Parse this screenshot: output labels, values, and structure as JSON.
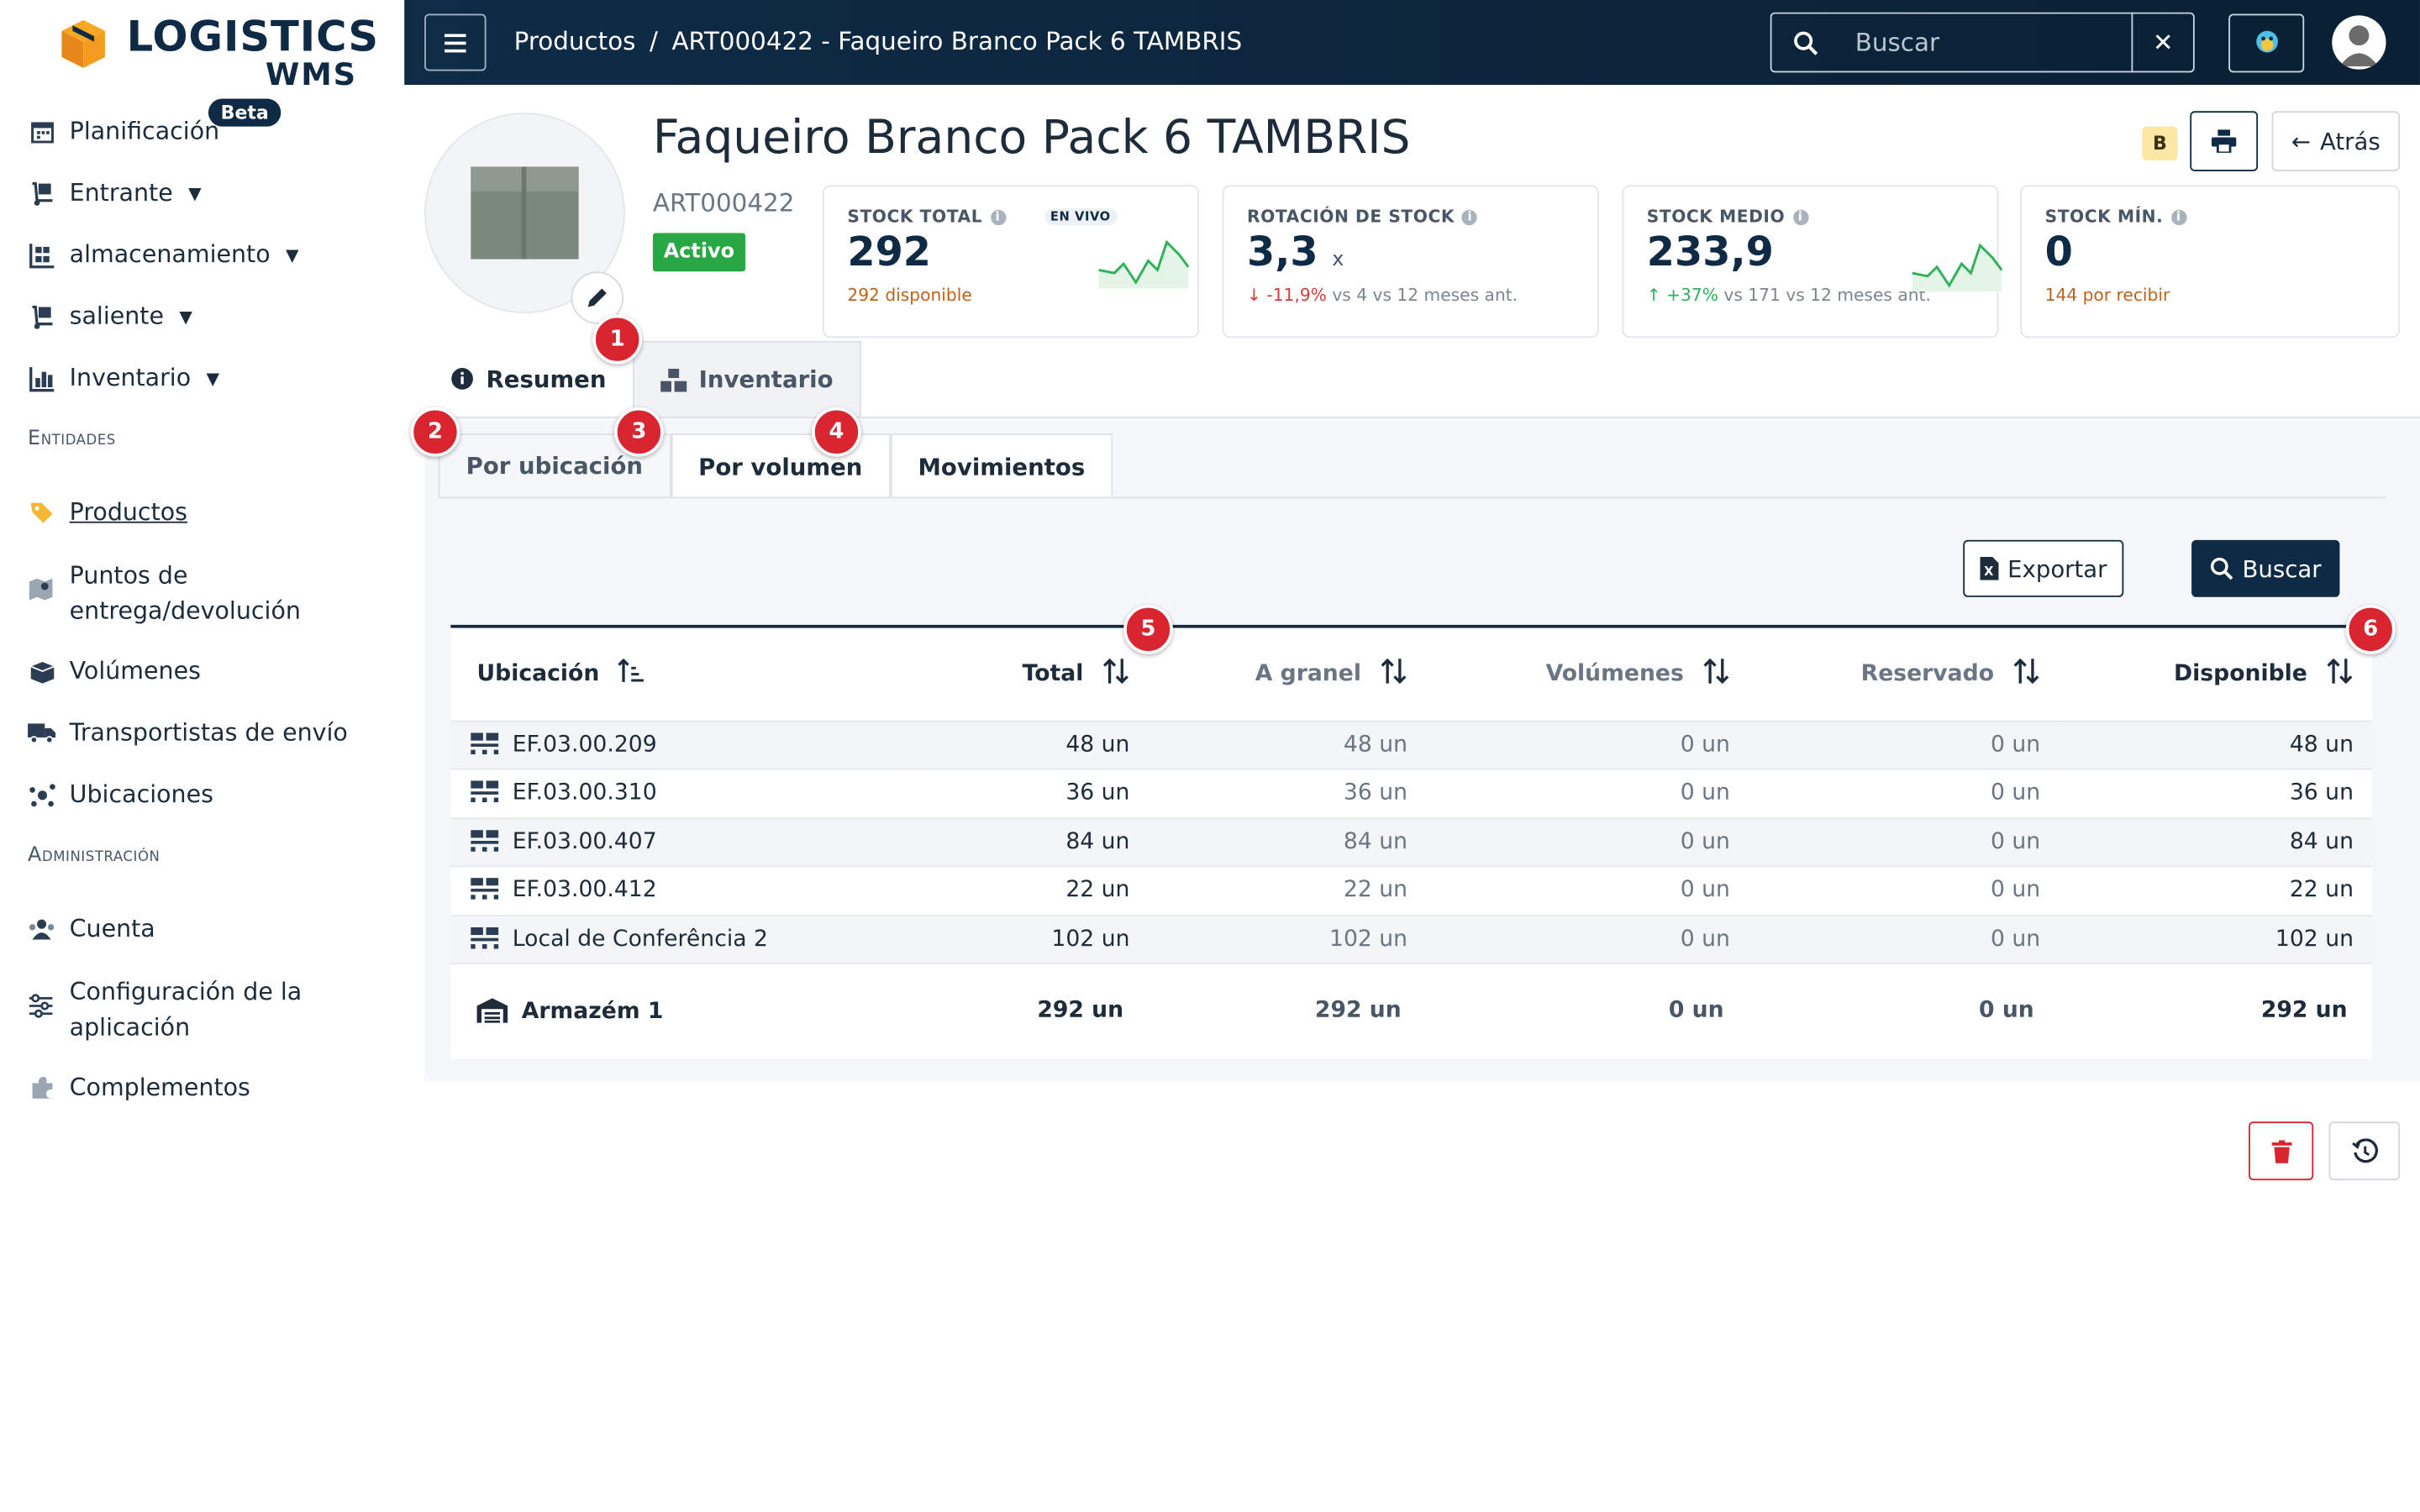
{
  "brand": {
    "name": "LOGISTICS",
    "sub": "WMS"
  },
  "sidebar": {
    "items": [
      {
        "label": "Planificación",
        "badge": "Beta"
      },
      {
        "label": "Entrante"
      },
      {
        "label": "almacenamiento"
      },
      {
        "label": "saliente"
      },
      {
        "label": "Inventario"
      }
    ],
    "section_entities": "Entidades",
    "entities": [
      {
        "label": "Productos"
      },
      {
        "label": "Puntos de",
        "label2": "entrega/devolución"
      },
      {
        "label": "Volúmenes"
      },
      {
        "label": "Transportistas de envío"
      },
      {
        "label": "Ubicaciones"
      }
    ],
    "section_admin": "Administración",
    "admin": [
      {
        "label": "Cuenta"
      },
      {
        "label": "Configuración de la",
        "label2": "aplicación"
      },
      {
        "label": "Complementos"
      }
    ]
  },
  "topbar": {
    "breadcrumb": {
      "parent": "Productos",
      "sep": "/",
      "current": "ART000422 - Faqueiro Branco Pack 6 TAMBRIS"
    },
    "search_placeholder": "Buscar",
    "clear": "✕"
  },
  "product": {
    "title": "Faqueiro Branco Pack 6 TAMBRIS",
    "code": "ART000422",
    "status": "Activo",
    "class": "B"
  },
  "header_buttons": {
    "back": "Atrás"
  },
  "kpis": [
    {
      "label": "STOCK TOTAL",
      "live": "EN VIVO",
      "value": "292",
      "unit": "",
      "sub": "292 disponible",
      "sub_muted": ""
    },
    {
      "label": "ROTACIÓN DE STOCK",
      "value": "3,3",
      "unit": "x",
      "sub": "↓ -11,9%",
      "sub_muted": "vs 4 vs 12 meses ant."
    },
    {
      "label": "STOCK MEDIO",
      "value": "233,9",
      "unit": "",
      "sub": "↑ +37%",
      "sub_muted": "vs 171 vs 12 meses ant."
    },
    {
      "label": "STOCK MÍN.",
      "value": "0",
      "unit": "",
      "sub": "144 por recibir",
      "sub_muted": ""
    }
  ],
  "tabs": {
    "summary": "Resumen",
    "inventory": "Inventario"
  },
  "subtabs": {
    "by_location": "Por ubicación",
    "by_volume": "Por volumen",
    "movements": "Movimientos"
  },
  "actions": {
    "export": "Exportar",
    "search": "Buscar"
  },
  "table": {
    "headers": [
      "Ubicación",
      "Total",
      "A granel",
      "Volúmenes",
      "Reservado",
      "Disponible"
    ],
    "rows": [
      [
        "EF.03.00.209",
        "48 un",
        "48 un",
        "0 un",
        "0 un",
        "48 un"
      ],
      [
        "EF.03.00.310",
        "36 un",
        "36 un",
        "0 un",
        "0 un",
        "36 un"
      ],
      [
        "EF.03.00.407",
        "84 un",
        "84 un",
        "0 un",
        "0 un",
        "84 un"
      ],
      [
        "EF.03.00.412",
        "22 un",
        "22 un",
        "0 un",
        "0 un",
        "22 un"
      ],
      [
        "Local de Conferência 2",
        "102 un",
        "102 un",
        "0 un",
        "0 un",
        "102 un"
      ]
    ],
    "total": [
      "Armazém 1",
      "292 un",
      "292 un",
      "0 un",
      "0 un",
      "292 un"
    ]
  },
  "markers": [
    "1",
    "2",
    "3",
    "4",
    "5",
    "6"
  ],
  "colors": {
    "primary": "#0f2a44",
    "success": "#28a745",
    "danger": "#d8252f",
    "warning": "#c0621a"
  }
}
